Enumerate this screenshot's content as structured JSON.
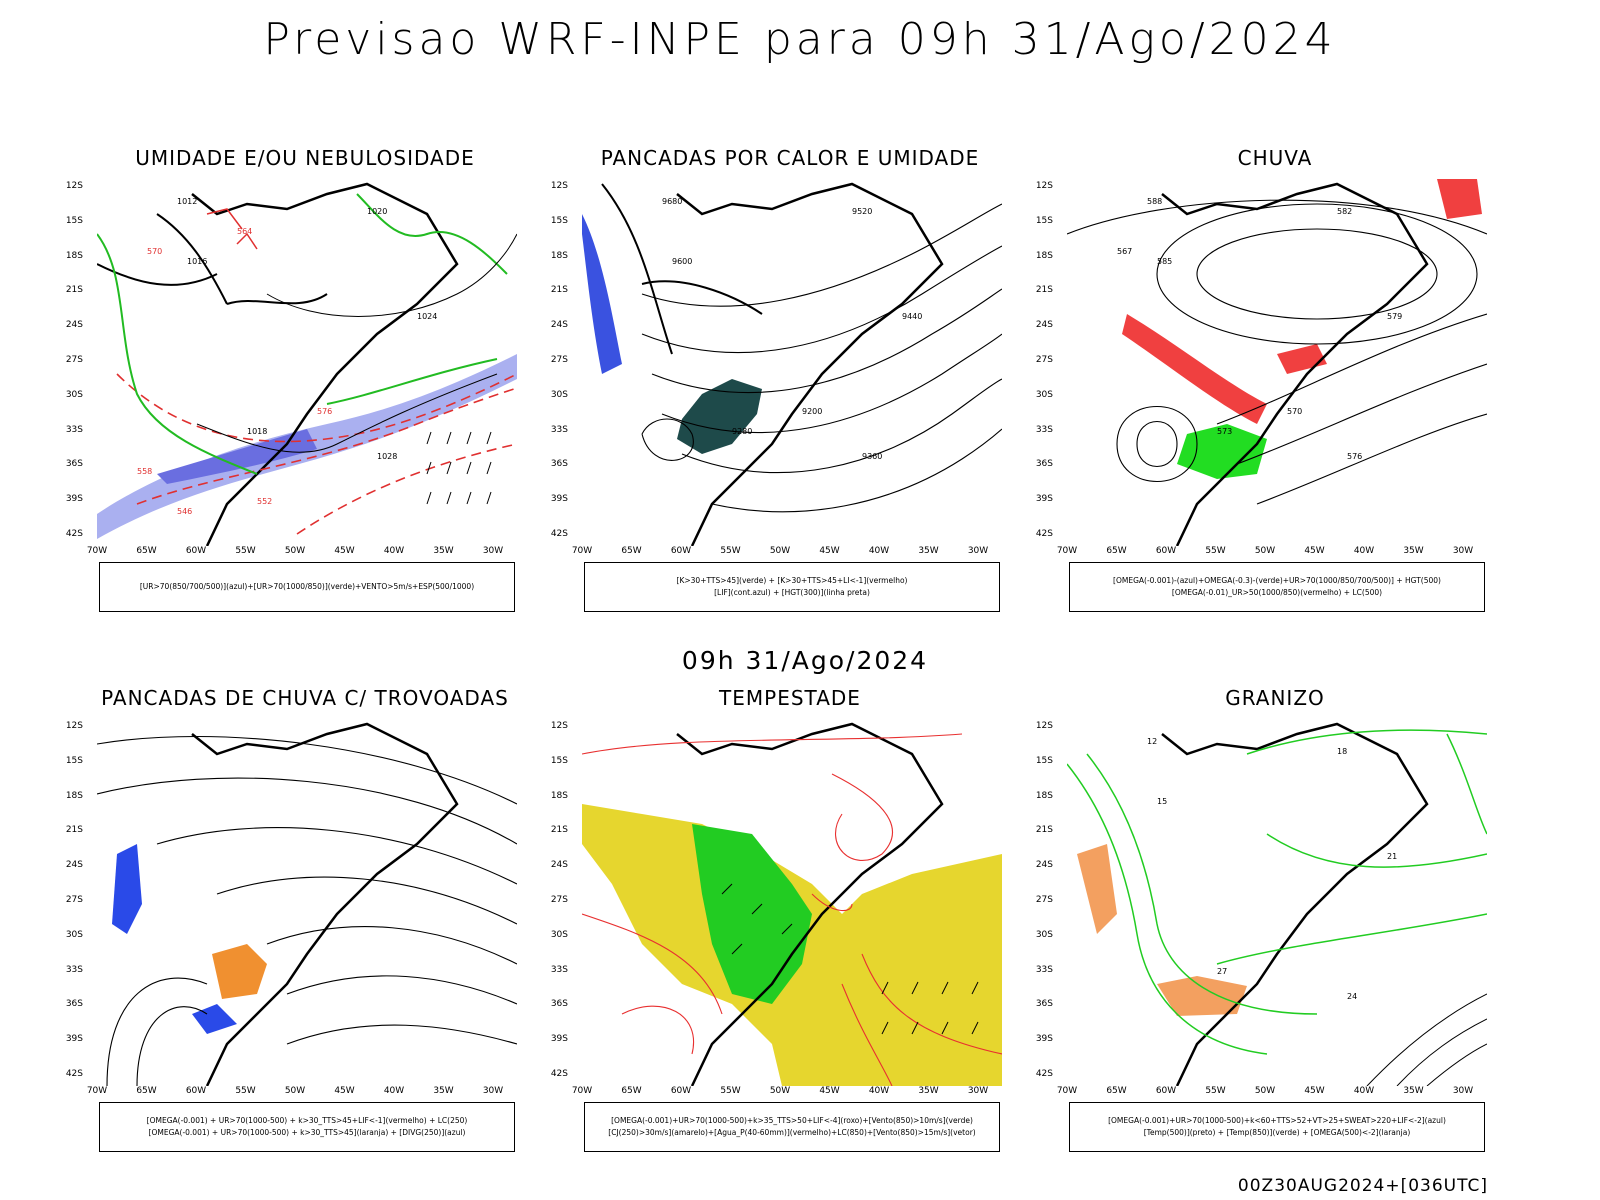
{
  "title": "Previsao WRF-INPE  para 09h 31/Ago/2024",
  "mid_title": "09h 31/Ago/2024",
  "footer": "00Z30AUG2024+[036UTC]",
  "axes": {
    "lat": [
      "12S",
      "15S",
      "18S",
      "21S",
      "24S",
      "27S",
      "30S",
      "33S",
      "36S",
      "39S",
      "42S"
    ],
    "lon": [
      "70W",
      "65W",
      "60W",
      "55W",
      "50W",
      "45W",
      "40W",
      "35W",
      "30W"
    ]
  },
  "panels": [
    {
      "title": "UMIDADE E/OU NEBULOSIDADE",
      "legend": [
        "[UR>70(850/700/500)](azul)+[UR>70(1000/850)](verde)+VENTO>5m/s+ESP(500/1000)"
      ],
      "labels": [
        "1012",
        "1016",
        "1020",
        "1024",
        "1028",
        "1018",
        "576",
        "570",
        "564",
        "558",
        "552",
        "546"
      ]
    },
    {
      "title": "PANCADAS POR CALOR E UMIDADE",
      "legend": [
        "[K>30+TTS>45](verde) + [K>30+TTS>45+LI<-1](vermelho)",
        "[LIF](cont.azul) + [HGT(300)](linha preta)"
      ],
      "labels": [
        "9680",
        "9600",
        "9520",
        "9440",
        "9360",
        "9280",
        "9200"
      ]
    },
    {
      "title": "CHUVA",
      "legend": [
        "[OMEGA(-0.001)-(azul)+OMEGA(-0.3)-(verde)+UR>70(1000/850/700/500)] + HGT(500)",
        "[OMEGA(-0.01)_UR>50(1000/850)(vermelho) + LC(500)"
      ],
      "labels": [
        "588",
        "585",
        "582",
        "579",
        "576",
        "573",
        "570",
        "567"
      ]
    },
    {
      "title": "PANCADAS DE CHUVA C/ TROVOADAS",
      "legend": [
        "[OMEGA(-0.001) + UR>70(1000-500) + k>30_TTS>45+LIF<-1](vermelho) + LC(250)",
        "[OMEGA(-0.001) + UR>70(1000-500) + k>30_TTS>45](laranja) + [DIVG(250)](azul)"
      ],
      "labels": []
    },
    {
      "title": "TEMPESTADE",
      "legend": [
        "[OMEGA(-0.001)+UR>70(1000-500)+k>35_TTS>50+LIF<-4](roxo)+[Vento(850)>10m/s](verde)",
        "[CJ(250)>30m/s](amarelo)+[Agua_P(40-60mm)](vermelho)+LC(850)+[Vento(850)>15m/s](vetor)"
      ],
      "labels": []
    },
    {
      "title": "GRANIZO",
      "legend": [
        "[OMEGA(-0.001)+UR>70(1000-500)+k<60+TTS>52+VT>25+SWEAT>220+LIF<-2](azul)",
        "[Temp(500)](preto) + [Temp(850)](verde) + [OMEGA(500)<-2](laranja)"
      ],
      "labels": [
        "12",
        "15",
        "18",
        "21",
        "24",
        "27"
      ]
    }
  ]
}
